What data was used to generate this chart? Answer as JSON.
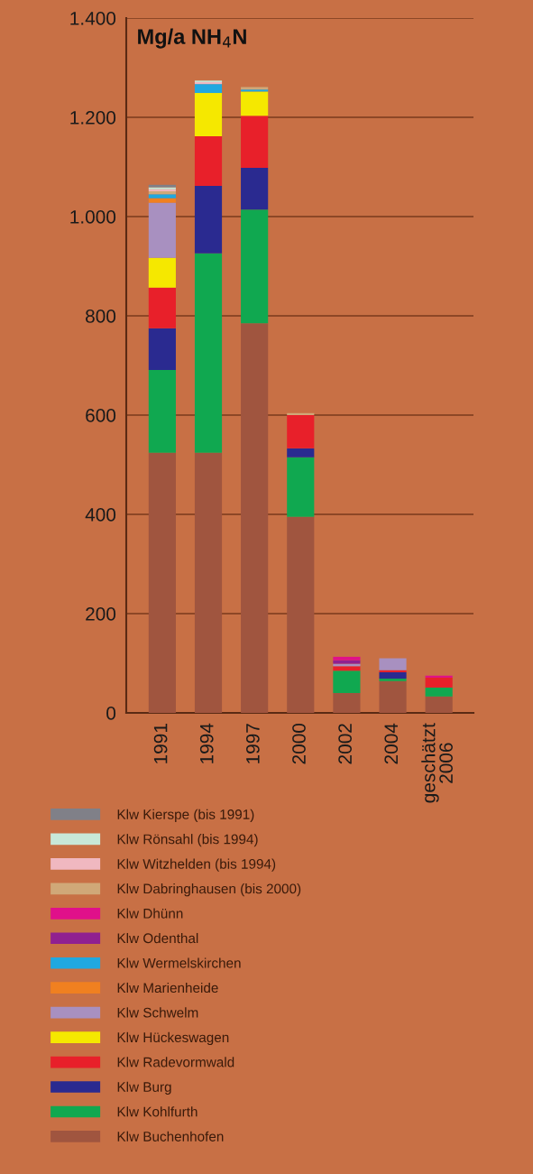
{
  "chart_data": {
    "type": "bar",
    "stacked": true,
    "title": "Mg/a NH$_{4}$N",
    "categories": [
      "1991",
      "1994",
      "1997",
      "2000",
      "2002",
      "2004",
      "geschätzt\n2006"
    ],
    "series": [
      {
        "name": "Klw Buchenhofen",
        "color": "#a0553f",
        "values": [
          524,
          524,
          785,
          395,
          40,
          64,
          33
        ]
      },
      {
        "name": "Klw Kohlfurth",
        "color": "#10a850",
        "values": [
          167,
          402,
          229,
          120,
          45,
          5,
          18
        ]
      },
      {
        "name": "Klw Burg",
        "color": "#2a2a90",
        "values": [
          84,
          136,
          84,
          18,
          null,
          13,
          null
        ]
      },
      {
        "name": "Klw Radevormwald",
        "color": "#e8202a",
        "values": [
          82,
          100,
          105,
          67,
          9,
          4,
          20
        ]
      },
      {
        "name": "Klw Hückeswagen",
        "color": "#f5e800",
        "values": [
          60,
          87,
          49,
          null,
          null,
          null,
          null
        ]
      },
      {
        "name": "Klw Schwelm",
        "color": "#a890c0",
        "values": [
          111,
          null,
          null,
          null,
          5,
          24,
          null
        ]
      },
      {
        "name": "Klw Marienheide",
        "color": "#f08020",
        "values": [
          9,
          null,
          null,
          null,
          null,
          null,
          null
        ]
      },
      {
        "name": "Klw Wermelskirchen",
        "color": "#20a8e0",
        "values": [
          8,
          18,
          4,
          null,
          null,
          null,
          null
        ]
      },
      {
        "name": "Klw Odenthal",
        "color": "#902090",
        "values": [
          null,
          null,
          null,
          null,
          7,
          null,
          null
        ]
      },
      {
        "name": "Klw Dhünn",
        "color": "#e0108a",
        "values": [
          null,
          null,
          null,
          null,
          7,
          null,
          4
        ]
      },
      {
        "name": "Klw Dabringhausen (bis 2000)",
        "color": "#d0a878",
        "values": [
          6,
          null,
          5,
          4,
          null,
          null,
          null
        ]
      },
      {
        "name": "Klw Witzhelden (bis 1994)",
        "color": "#f0b8c0",
        "values": [
          4,
          4,
          null,
          null,
          null,
          null,
          null
        ]
      },
      {
        "name": "Klw Rönsahl (bis 1994)",
        "color": "#c8e8d8",
        "values": [
          4,
          3,
          null,
          null,
          null,
          null,
          null
        ]
      },
      {
        "name": "Klw Kierspe (bis 1991)",
        "color": "#808088",
        "values": [
          5,
          null,
          null,
          null,
          null,
          null,
          null
        ]
      }
    ],
    "ylim": [
      0,
      1400
    ],
    "yticks": [
      0,
      200,
      400,
      600,
      800,
      {
        "value": 1000,
        "label": "1.000"
      },
      {
        "value": 1200,
        "label": "1.200"
      },
      {
        "value": 1400,
        "label": "1.400"
      }
    ],
    "grid": "y",
    "legend": "bottom"
  }
}
